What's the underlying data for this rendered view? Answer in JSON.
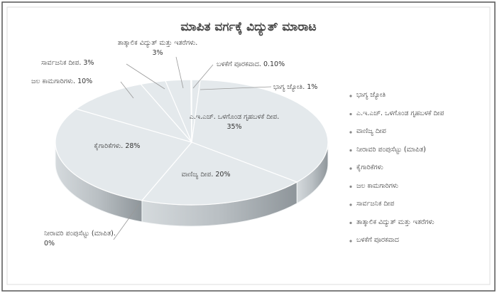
{
  "chart_data": {
    "type": "pie3d",
    "title": "ಮಾಪಿತ ವರ್ಗಕ್ಕೆ ವಿದ್ಯುತ್ ಮಾರಾಟ",
    "categories": [
      "ಭಾಗ್ಯ ಜ್ಯೋತಿ",
      "ಎ.ಇ.ಎಚ್. ಒಳಗೊಂಡ ಗೃಹಬಳಕೆ ದೀಪ",
      "ವಾಣಿಜ್ಯ ದೀಪ",
      "ನೀರಾವರಿ ಪಂಪುಸೆಟ್ಟು (ಮಾಪಿತ)",
      "ಕೈಗಾರಿಕೆಗಳು",
      "ಜಲ ಕಾಮಗಾರಿಗಳು",
      "ಸಾರ್ವಜನಿಕ ದೀಪ",
      "ತಾತ್ಕಾಲಿಕ ವಿದ್ಯುತ್ ಮತ್ತು ಇತರೆಗಳು",
      "ಬಳಕೆಗೆ ಪೂರಕವಾದ"
    ],
    "values": [
      1,
      35,
      20,
      0,
      28,
      10,
      3,
      3,
      0.1
    ],
    "value_labels": [
      "ಭಾಗ್ಯ ಜ್ಯೋತಿ. 1%",
      "ಎ.ಇ.ಎಚ್. ಒಳಗೊಂಡ ಗೃಹಬಳಕೆ ದೀಪ. 35%",
      "ವಾಣಿಜ್ಯ ದೀಪ. 20%",
      "ನೀರಾವರಿ ಪಂಪುಸೆಟ್ಟು (ಮಾಪಿತ). 0%",
      "ಕೈಗಾರಿಕೆಗಳು. 28%",
      "ಜಲ ಕಾಮಗಾರಿಗಳು. 10%",
      "ಸಾರ್ವಜನಿಕ ದೀಪ. 3%",
      "ತಾತ್ಕಾಲಿಕ ವಿದ್ಯುತ್ ಮತ್ತು ಇತರೆಗಳು. 3%",
      "ಬಳಕೆಗೆ ಪೂರಕವಾದ. 0.10%"
    ],
    "color": "#e4e9ec",
    "legend": "right"
  }
}
